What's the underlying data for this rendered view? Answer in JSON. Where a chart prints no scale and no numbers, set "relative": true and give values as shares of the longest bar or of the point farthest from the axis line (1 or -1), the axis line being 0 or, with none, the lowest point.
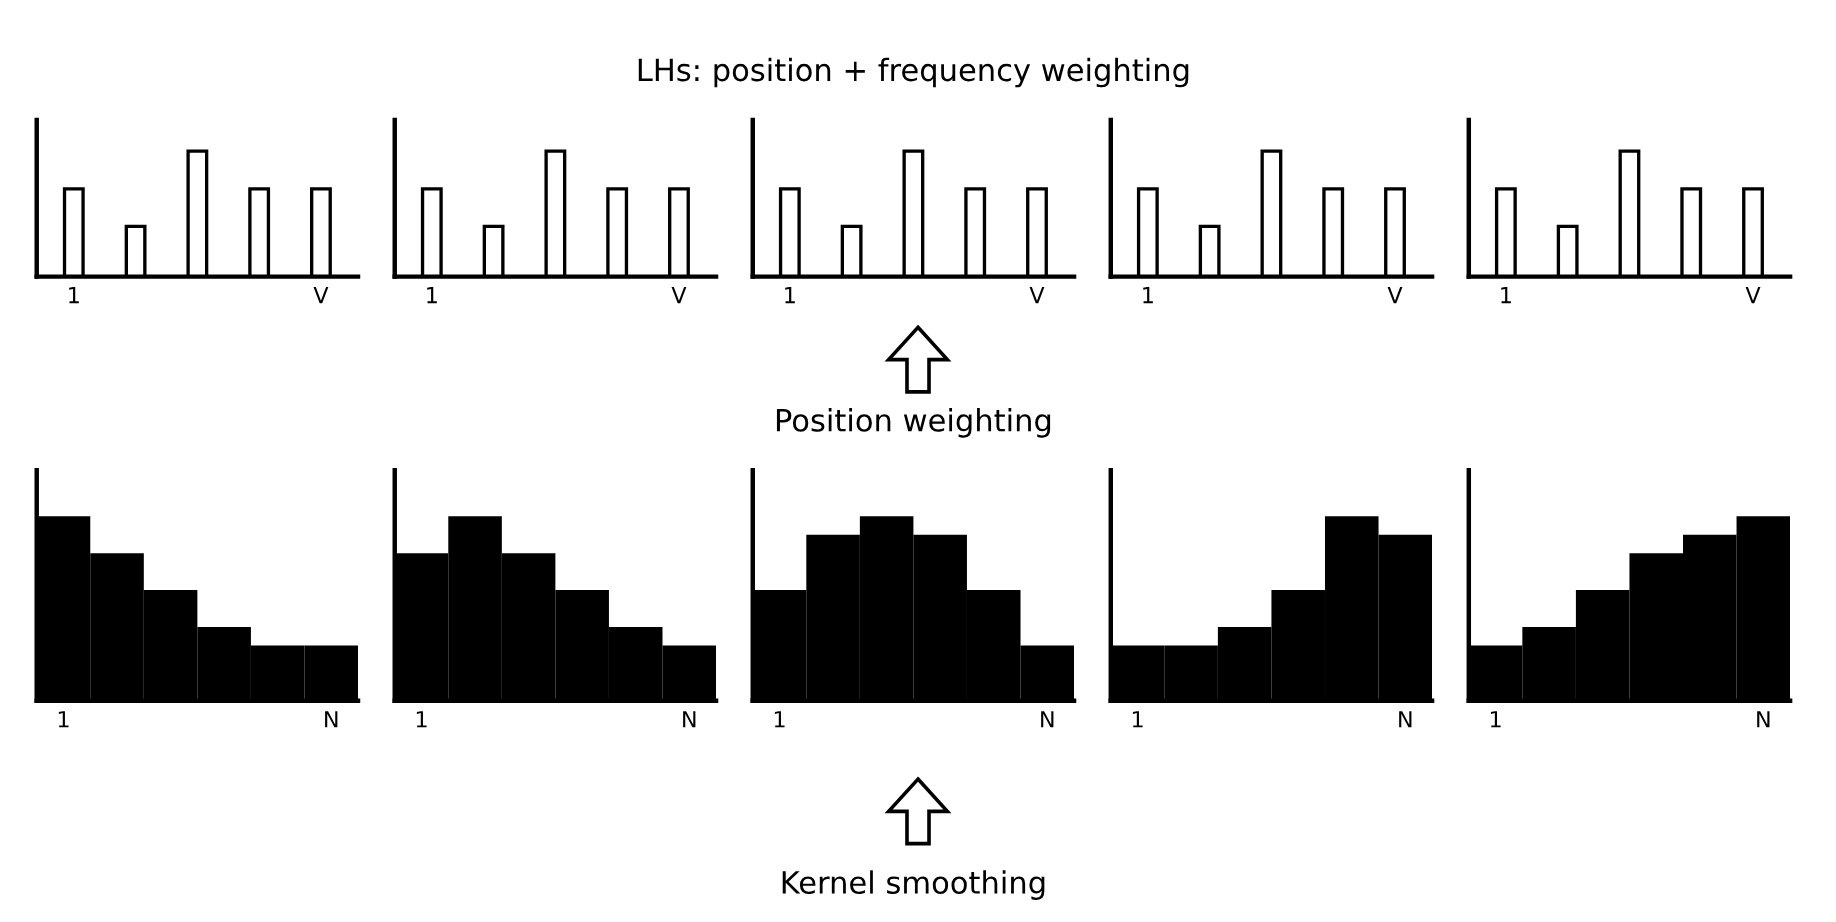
{
  "chart_data": [
    {
      "type": "bar",
      "relative": true,
      "categories": [
        "1",
        null,
        null,
        null,
        "V"
      ],
      "values": [
        0.7,
        0.4,
        1,
        0.7,
        0.7
      ],
      "color": "#ffffff"
    },
    {
      "type": "bar",
      "relative": true,
      "categories": [
        "1",
        null,
        null,
        null,
        "V"
      ],
      "values": [
        0.7,
        0.4,
        1,
        0.7,
        0.7
      ],
      "color": "#ffffff"
    },
    {
      "type": "bar",
      "relative": true,
      "title": "LHs: position + frequency weighting",
      "categories": [
        "1",
        null,
        null,
        null,
        "V"
      ],
      "values": [
        0.7,
        0.4,
        1,
        0.7,
        0.7
      ],
      "color": "#ffffff"
    },
    {
      "type": "bar",
      "relative": true,
      "categories": [
        "1",
        null,
        null,
        null,
        "V"
      ],
      "values": [
        0.7,
        0.4,
        1,
        0.7,
        0.7
      ],
      "color": "#ffffff"
    },
    {
      "type": "bar",
      "relative": true,
      "categories": [
        "1",
        null,
        null,
        null,
        "V"
      ],
      "values": [
        0.7,
        0.4,
        1,
        0.7,
        0.7
      ],
      "color": "#ffffff"
    },
    {
      "type": "bar",
      "relative": true,
      "categories": [
        "1",
        null,
        null,
        null,
        null,
        "N"
      ],
      "values": [
        1,
        0.8,
        0.6,
        0.4,
        0.3,
        0.3
      ],
      "color": "#000000"
    },
    {
      "type": "bar",
      "relative": true,
      "categories": [
        "1",
        null,
        null,
        null,
        null,
        "N"
      ],
      "values": [
        0.8,
        1,
        0.8,
        0.6,
        0.4,
        0.3
      ],
      "color": "#000000"
    },
    {
      "type": "bar",
      "relative": true,
      "title": "Position weighting",
      "annotations": [
        "Kernel smoothing"
      ],
      "categories": [
        "1",
        null,
        null,
        null,
        null,
        "N"
      ],
      "values": [
        0.6,
        0.9,
        1,
        0.9,
        0.6,
        0.3
      ],
      "color": "#000000"
    },
    {
      "type": "bar",
      "relative": true,
      "categories": [
        "1",
        null,
        null,
        null,
        null,
        "N"
      ],
      "values": [
        0.3,
        0.3,
        0.4,
        0.6,
        1,
        0.9
      ],
      "color": "#000000"
    },
    {
      "type": "bar",
      "relative": true,
      "categories": [
        "1",
        null,
        null,
        null,
        null,
        "N"
      ],
      "values": [
        0.3,
        0.4,
        0.6,
        0.8,
        0.9,
        1
      ],
      "color": "#000000"
    }
  ]
}
